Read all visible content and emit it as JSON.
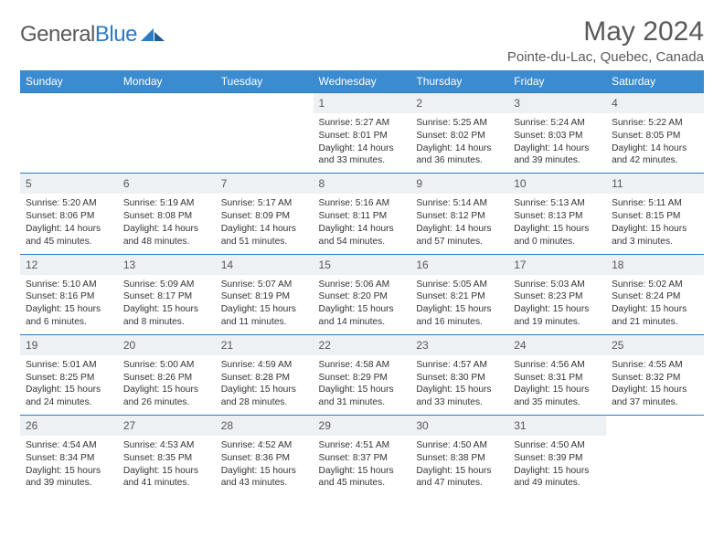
{
  "brand": {
    "name_a": "General",
    "name_b": "Blue"
  },
  "header": {
    "month": "May 2024",
    "location": "Pointe-du-Lac, Quebec, Canada"
  },
  "colors": {
    "header_bg": "#3a8bd0",
    "daynum_bg": "#eef1f4",
    "rule": "#2d7bc0",
    "text": "#333333",
    "muted": "#5a5a5a",
    "white": "#ffffff"
  },
  "days_of_week": [
    "Sunday",
    "Monday",
    "Tuesday",
    "Wednesday",
    "Thursday",
    "Friday",
    "Saturday"
  ],
  "weeks": [
    [
      null,
      null,
      null,
      {
        "n": "1",
        "sr": "5:27 AM",
        "ss": "8:01 PM",
        "dl": "14 hours and 33 minutes."
      },
      {
        "n": "2",
        "sr": "5:25 AM",
        "ss": "8:02 PM",
        "dl": "14 hours and 36 minutes."
      },
      {
        "n": "3",
        "sr": "5:24 AM",
        "ss": "8:03 PM",
        "dl": "14 hours and 39 minutes."
      },
      {
        "n": "4",
        "sr": "5:22 AM",
        "ss": "8:05 PM",
        "dl": "14 hours and 42 minutes."
      }
    ],
    [
      {
        "n": "5",
        "sr": "5:20 AM",
        "ss": "8:06 PM",
        "dl": "14 hours and 45 minutes."
      },
      {
        "n": "6",
        "sr": "5:19 AM",
        "ss": "8:08 PM",
        "dl": "14 hours and 48 minutes."
      },
      {
        "n": "7",
        "sr": "5:17 AM",
        "ss": "8:09 PM",
        "dl": "14 hours and 51 minutes."
      },
      {
        "n": "8",
        "sr": "5:16 AM",
        "ss": "8:11 PM",
        "dl": "14 hours and 54 minutes."
      },
      {
        "n": "9",
        "sr": "5:14 AM",
        "ss": "8:12 PM",
        "dl": "14 hours and 57 minutes."
      },
      {
        "n": "10",
        "sr": "5:13 AM",
        "ss": "8:13 PM",
        "dl": "15 hours and 0 minutes."
      },
      {
        "n": "11",
        "sr": "5:11 AM",
        "ss": "8:15 PM",
        "dl": "15 hours and 3 minutes."
      }
    ],
    [
      {
        "n": "12",
        "sr": "5:10 AM",
        "ss": "8:16 PM",
        "dl": "15 hours and 6 minutes."
      },
      {
        "n": "13",
        "sr": "5:09 AM",
        "ss": "8:17 PM",
        "dl": "15 hours and 8 minutes."
      },
      {
        "n": "14",
        "sr": "5:07 AM",
        "ss": "8:19 PM",
        "dl": "15 hours and 11 minutes."
      },
      {
        "n": "15",
        "sr": "5:06 AM",
        "ss": "8:20 PM",
        "dl": "15 hours and 14 minutes."
      },
      {
        "n": "16",
        "sr": "5:05 AM",
        "ss": "8:21 PM",
        "dl": "15 hours and 16 minutes."
      },
      {
        "n": "17",
        "sr": "5:03 AM",
        "ss": "8:23 PM",
        "dl": "15 hours and 19 minutes."
      },
      {
        "n": "18",
        "sr": "5:02 AM",
        "ss": "8:24 PM",
        "dl": "15 hours and 21 minutes."
      }
    ],
    [
      {
        "n": "19",
        "sr": "5:01 AM",
        "ss": "8:25 PM",
        "dl": "15 hours and 24 minutes."
      },
      {
        "n": "20",
        "sr": "5:00 AM",
        "ss": "8:26 PM",
        "dl": "15 hours and 26 minutes."
      },
      {
        "n": "21",
        "sr": "4:59 AM",
        "ss": "8:28 PM",
        "dl": "15 hours and 28 minutes."
      },
      {
        "n": "22",
        "sr": "4:58 AM",
        "ss": "8:29 PM",
        "dl": "15 hours and 31 minutes."
      },
      {
        "n": "23",
        "sr": "4:57 AM",
        "ss": "8:30 PM",
        "dl": "15 hours and 33 minutes."
      },
      {
        "n": "24",
        "sr": "4:56 AM",
        "ss": "8:31 PM",
        "dl": "15 hours and 35 minutes."
      },
      {
        "n": "25",
        "sr": "4:55 AM",
        "ss": "8:32 PM",
        "dl": "15 hours and 37 minutes."
      }
    ],
    [
      {
        "n": "26",
        "sr": "4:54 AM",
        "ss": "8:34 PM",
        "dl": "15 hours and 39 minutes."
      },
      {
        "n": "27",
        "sr": "4:53 AM",
        "ss": "8:35 PM",
        "dl": "15 hours and 41 minutes."
      },
      {
        "n": "28",
        "sr": "4:52 AM",
        "ss": "8:36 PM",
        "dl": "15 hours and 43 minutes."
      },
      {
        "n": "29",
        "sr": "4:51 AM",
        "ss": "8:37 PM",
        "dl": "15 hours and 45 minutes."
      },
      {
        "n": "30",
        "sr": "4:50 AM",
        "ss": "8:38 PM",
        "dl": "15 hours and 47 minutes."
      },
      {
        "n": "31",
        "sr": "4:50 AM",
        "ss": "8:39 PM",
        "dl": "15 hours and 49 minutes."
      },
      null
    ]
  ],
  "labels": {
    "sunrise": "Sunrise:",
    "sunset": "Sunset:",
    "daylight": "Daylight:"
  }
}
